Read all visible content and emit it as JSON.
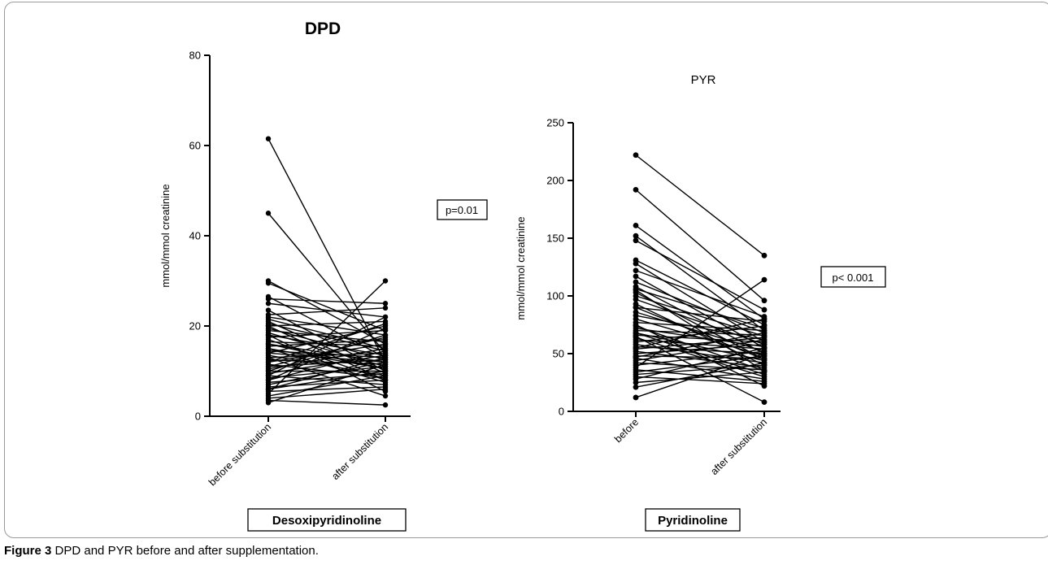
{
  "caption": {
    "label": "Figure 3",
    "text": "DPD and PYR before and after supplementation."
  },
  "chart_data": [
    {
      "type": "line",
      "title": "DPD",
      "ylabel": "mmol/mmol creatinine",
      "ylim": [
        0,
        80
      ],
      "yticks": [
        "0",
        "20",
        "40",
        "60",
        "80"
      ],
      "categories": [
        "before substitution",
        "after substitution"
      ],
      "annotation": "p=0.01",
      "group_label": "Desoxipyridinoline",
      "pairs": [
        [
          61.5,
          12
        ],
        [
          45,
          14
        ],
        [
          30,
          16
        ],
        [
          29.5,
          19
        ],
        [
          26.5,
          13
        ],
        [
          26,
          25
        ],
        [
          25,
          22
        ],
        [
          23.5,
          10
        ],
        [
          22.5,
          24
        ],
        [
          22,
          18
        ],
        [
          21.5,
          15
        ],
        [
          21,
          9.5
        ],
        [
          20.5,
          14.5
        ],
        [
          20,
          21
        ],
        [
          19.5,
          12.5
        ],
        [
          19,
          16.5
        ],
        [
          18.5,
          11
        ],
        [
          18,
          13.5
        ],
        [
          17.5,
          19
        ],
        [
          17,
          8
        ],
        [
          16.5,
          15.5
        ],
        [
          16,
          12
        ],
        [
          15.5,
          17
        ],
        [
          15,
          10.5
        ],
        [
          14.5,
          13
        ],
        [
          14,
          20
        ],
        [
          13.5,
          9
        ],
        [
          13,
          14
        ],
        [
          12.5,
          11.5
        ],
        [
          12,
          16
        ],
        [
          11.5,
          8.5
        ],
        [
          11,
          12.5
        ],
        [
          10.5,
          15
        ],
        [
          10,
          10
        ],
        [
          9.5,
          13.5
        ],
        [
          9,
          7
        ],
        [
          8.5,
          11
        ],
        [
          8,
          14.5
        ],
        [
          7.5,
          9.5
        ],
        [
          7,
          12
        ],
        [
          6.5,
          8
        ],
        [
          6,
          10
        ],
        [
          5.5,
          6.5
        ],
        [
          5,
          30
        ],
        [
          4.5,
          9
        ],
        [
          4,
          6
        ],
        [
          3.5,
          2.5
        ],
        [
          3,
          11.5
        ],
        [
          12,
          20.5
        ],
        [
          10,
          18
        ],
        [
          15,
          7.5
        ],
        [
          18,
          5.5
        ],
        [
          9,
          22
        ],
        [
          11,
          17.5
        ],
        [
          13,
          4.5
        ],
        [
          8,
          19.5
        ],
        [
          20,
          8
        ],
        [
          14,
          12
        ],
        [
          16,
          10.5
        ],
        [
          6,
          13
        ]
      ]
    },
    {
      "type": "line",
      "title": "PYR",
      "ylabel": "mmol/mmol creatinine",
      "ylim": [
        0,
        250
      ],
      "yticks": [
        "0",
        "50",
        "100",
        "150",
        "200",
        "250"
      ],
      "categories": [
        "before",
        "after substitution"
      ],
      "annotation": "p< 0.001",
      "group_label": "Pyridinoline",
      "pairs": [
        [
          222,
          135
        ],
        [
          192,
          96
        ],
        [
          161,
          80
        ],
        [
          152,
          70
        ],
        [
          148,
          88
        ],
        [
          131,
          75
        ],
        [
          128,
          60
        ],
        [
          122,
          82
        ],
        [
          117,
          55
        ],
        [
          112,
          68
        ],
        [
          108,
          50
        ],
        [
          106,
          72
        ],
        [
          103,
          45
        ],
        [
          100,
          65
        ],
        [
          97,
          58
        ],
        [
          93,
          40
        ],
        [
          90,
          78
        ],
        [
          86,
          52
        ],
        [
          83,
          62
        ],
        [
          80,
          48
        ],
        [
          77,
          70
        ],
        [
          74,
          35
        ],
        [
          72,
          56
        ],
        [
          70,
          66
        ],
        [
          68,
          44
        ],
        [
          66,
          60
        ],
        [
          64,
          30
        ],
        [
          62,
          54
        ],
        [
          60,
          74
        ],
        [
          58,
          42
        ],
        [
          56,
          50
        ],
        [
          54,
          64
        ],
        [
          52,
          38
        ],
        [
          50,
          58
        ],
        [
          48,
          46
        ],
        [
          46,
          28
        ],
        [
          44,
          62
        ],
        [
          42,
          36
        ],
        [
          40,
          52
        ],
        [
          38,
          114
        ],
        [
          36,
          26
        ],
        [
          34,
          48
        ],
        [
          32,
          40
        ],
        [
          30,
          24
        ],
        [
          28,
          55
        ],
        [
          25,
          34
        ],
        [
          21,
          42
        ],
        [
          12,
          50
        ],
        [
          65,
          8
        ],
        [
          90,
          45
        ],
        [
          75,
          22
        ],
        [
          55,
          80
        ],
        [
          105,
          35
        ],
        [
          47,
          68
        ],
        [
          68,
          32
        ]
      ]
    }
  ]
}
